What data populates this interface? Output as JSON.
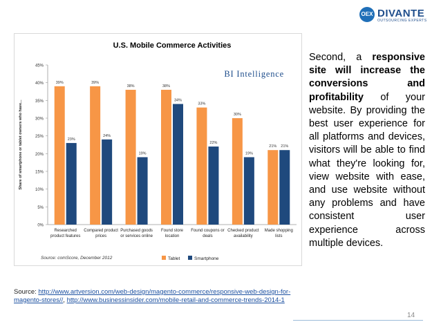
{
  "logo": {
    "mark": "OEX",
    "name": "DIVANTE",
    "tagline": "OUTSOURCING EXPERTS"
  },
  "chart_data": {
    "type": "bar",
    "title": "U.S. Mobile Commerce Activities",
    "watermark": "BI Intelligence",
    "ylabel": "Share of smartphone or tablet owners who have...",
    "ylim": [
      0,
      45
    ],
    "yticks": [
      "0%",
      "5%",
      "10%",
      "15%",
      "20%",
      "25%",
      "30%",
      "35%",
      "40%",
      "45%"
    ],
    "categories": [
      [
        "Researched",
        "product features"
      ],
      [
        "Compared product",
        "prices"
      ],
      [
        "Purchased goods",
        "or services online"
      ],
      [
        "Found store",
        "location"
      ],
      [
        "Found coupons or",
        "deals"
      ],
      [
        "Checked product",
        "availability"
      ],
      [
        "Made shopping",
        "lists"
      ]
    ],
    "series": [
      {
        "name": "Tablet",
        "color": "#f79646",
        "values": [
          39,
          39,
          38,
          38,
          33,
          30,
          21
        ]
      },
      {
        "name": "Smartphone",
        "color": "#1f497d",
        "values": [
          23,
          24,
          19,
          34,
          22,
          19,
          21
        ]
      }
    ],
    "source_note": "Source: comScore, December 2012",
    "legend_position": "bottom"
  },
  "side_text": [
    {
      "text": "Second, a ",
      "bold": false
    },
    {
      "text": "responsive site will increase the conversions and profitability",
      "bold": true
    },
    {
      "text": " of your website. By providing the best user experience for all platforms and devices, visitors will be able to find what they're looking for, view website with ease, and use website without any problems and have consistent user experience across multiple devices.",
      "bold": false
    }
  ],
  "source": {
    "prefix": "Source: ",
    "link1": "http://www.artversion.com/web-design/magento-commerce/responsive-web-design-for-magento-stores//",
    "separator": ", ",
    "link2": "http://www.businessinsider.com/mobile-retail-and-commerce-trends-2014-1"
  },
  "page_number": "14"
}
